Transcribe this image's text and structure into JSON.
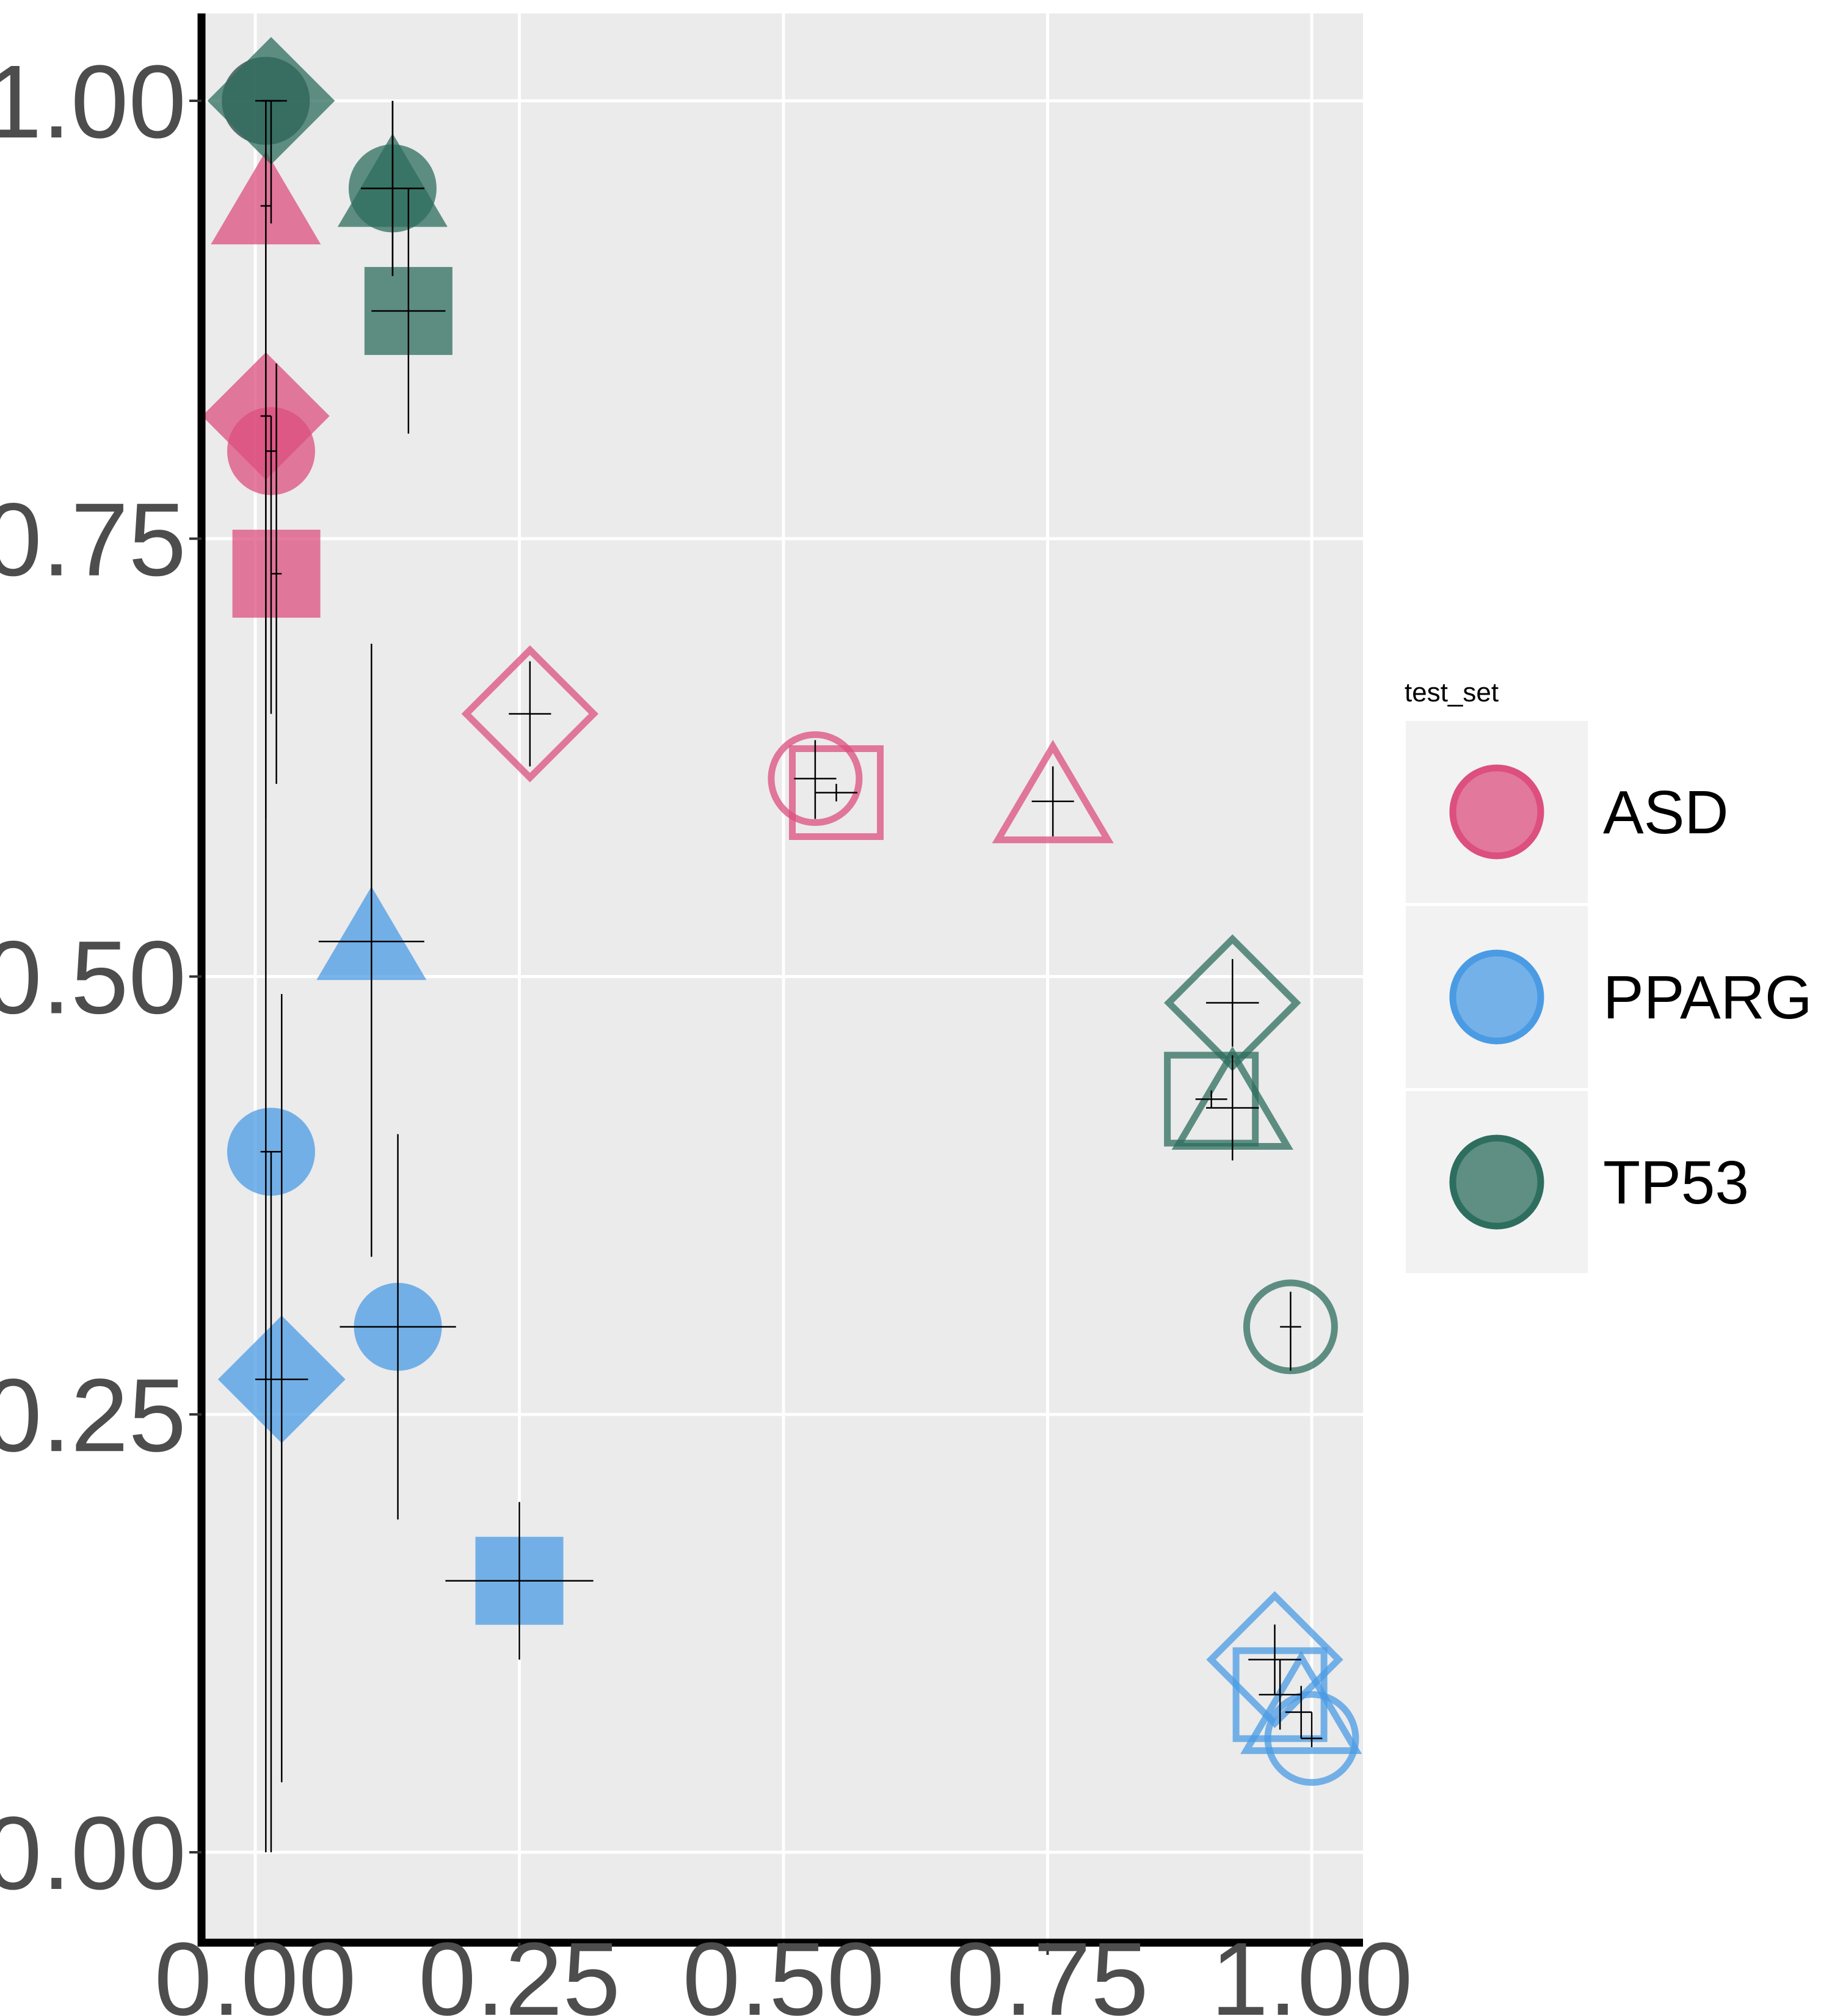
{
  "chart_data": {
    "type": "scatter",
    "title": "",
    "xlabel": "",
    "ylabel": "",
    "xlim": [
      -0.05,
      1.05
    ],
    "ylim": [
      -0.05,
      1.05
    ],
    "x_ticks": [
      0,
      0.25,
      0.5,
      0.75,
      1
    ],
    "y_ticks": [
      0,
      0.25,
      0.5,
      0.75,
      1
    ],
    "x_tick_labels": [
      "0.00",
      "0.25",
      "0.50",
      "0.75",
      "1.00"
    ],
    "y_tick_labels": [
      "0.00",
      "0.25",
      "0.50",
      "0.75",
      "1.00"
    ],
    "grid": true,
    "panel_background": "#EBEBEB",
    "legend": {
      "title": "test_set",
      "placement": "right",
      "entries": [
        "ASD",
        "PPARG",
        "TP53"
      ]
    },
    "colors": {
      "ASD": "#DC4F7E",
      "PPARG": "#4A9BE4",
      "TP53": "#2E6E5E"
    },
    "series": [
      {
        "name": "ASD",
        "points": [
          {
            "shape": "circle",
            "filled": true,
            "x": 0.01,
            "y": 1.0,
            "xlo": 0.005,
            "xhi": 0.015,
            "ylo": 0.59,
            "yhi": 1.0
          },
          {
            "shape": "triangle",
            "filled": true,
            "x": 0.01,
            "y": 0.94,
            "xlo": 0.005,
            "xhi": 0.015,
            "ylo": 0.59,
            "yhi": 0.94
          },
          {
            "shape": "diamond",
            "filled": true,
            "x": 0.01,
            "y": 0.82,
            "xlo": 0.005,
            "xhi": 0.015,
            "ylo": 0.0,
            "yhi": 0.85
          },
          {
            "shape": "circle",
            "filled": true,
            "x": 0.015,
            "y": 0.8,
            "xlo": 0.01,
            "xhi": 0.02,
            "ylo": 0.65,
            "yhi": 0.82
          },
          {
            "shape": "square",
            "filled": true,
            "x": 0.02,
            "y": 0.73,
            "xlo": 0.015,
            "xhi": 0.025,
            "ylo": 0.61,
            "yhi": 0.85
          },
          {
            "shape": "diamond",
            "filled": false,
            "x": 0.26,
            "y": 0.65,
            "xlo": 0.24,
            "xhi": 0.28,
            "ylo": 0.62,
            "yhi": 0.68
          },
          {
            "shape": "circle",
            "filled": false,
            "x": 0.53,
            "y": 0.613,
            "xlo": 0.51,
            "xhi": 0.55,
            "ylo": 0.59,
            "yhi": 0.635
          },
          {
            "shape": "square",
            "filled": false,
            "x": 0.55,
            "y": 0.605,
            "xlo": 0.53,
            "xhi": 0.57,
            "ylo": 0.6,
            "yhi": 0.61
          },
          {
            "shape": "triangle",
            "filled": false,
            "x": 0.755,
            "y": 0.6,
            "xlo": 0.735,
            "xhi": 0.775,
            "ylo": 0.58,
            "yhi": 0.62
          }
        ]
      },
      {
        "name": "PPARG",
        "points": [
          {
            "shape": "triangle",
            "filled": true,
            "x": 0.11,
            "y": 0.52,
            "xlo": 0.06,
            "xhi": 0.16,
            "ylo": 0.34,
            "yhi": 0.69
          },
          {
            "shape": "circle",
            "filled": true,
            "x": 0.015,
            "y": 0.4,
            "xlo": 0.005,
            "xhi": 0.025,
            "ylo": 0.0,
            "yhi": 0.4
          },
          {
            "shape": "circle",
            "filled": true,
            "x": 0.135,
            "y": 0.3,
            "xlo": 0.08,
            "xhi": 0.19,
            "ylo": 0.19,
            "yhi": 0.41
          },
          {
            "shape": "diamond",
            "filled": true,
            "x": 0.025,
            "y": 0.27,
            "xlo": 0.0,
            "xhi": 0.05,
            "ylo": 0.04,
            "yhi": 0.49
          },
          {
            "shape": "square",
            "filled": true,
            "x": 0.25,
            "y": 0.155,
            "xlo": 0.18,
            "xhi": 0.32,
            "ylo": 0.11,
            "yhi": 0.2
          },
          {
            "shape": "diamond",
            "filled": false,
            "x": 0.965,
            "y": 0.11,
            "xlo": 0.94,
            "xhi": 0.99,
            "ylo": 0.09,
            "yhi": 0.13
          },
          {
            "shape": "square",
            "filled": false,
            "x": 0.97,
            "y": 0.09,
            "xlo": 0.95,
            "xhi": 0.99,
            "ylo": 0.07,
            "yhi": 0.11
          },
          {
            "shape": "triangle",
            "filled": false,
            "x": 0.99,
            "y": 0.08,
            "xlo": 0.975,
            "xhi": 1.0,
            "ylo": 0.065,
            "yhi": 0.095
          },
          {
            "shape": "circle",
            "filled": false,
            "x": 1.0,
            "y": 0.065,
            "xlo": 0.99,
            "xhi": 1.01,
            "ylo": 0.06,
            "yhi": 0.08
          }
        ]
      },
      {
        "name": "TP53",
        "points": [
          {
            "shape": "diamond",
            "filled": true,
            "x": 0.015,
            "y": 1.0,
            "xlo": 0.005,
            "xhi": 0.025,
            "ylo": 0.93,
            "yhi": 1.0
          },
          {
            "shape": "circle",
            "filled": true,
            "x": 0.01,
            "y": 1.0,
            "xlo": 0.0,
            "xhi": 0.03,
            "ylo": 0.93,
            "yhi": 1.0
          },
          {
            "shape": "triangle",
            "filled": true,
            "x": 0.13,
            "y": 0.95,
            "xlo": 0.1,
            "xhi": 0.16,
            "ylo": 0.9,
            "yhi": 1.0
          },
          {
            "shape": "circle",
            "filled": true,
            "x": 0.13,
            "y": 0.95,
            "xlo": 0.1,
            "xhi": 0.16,
            "ylo": 0.9,
            "yhi": 1.0
          },
          {
            "shape": "square",
            "filled": true,
            "x": 0.145,
            "y": 0.88,
            "xlo": 0.11,
            "xhi": 0.18,
            "ylo": 0.81,
            "yhi": 0.95
          },
          {
            "shape": "diamond",
            "filled": false,
            "x": 0.925,
            "y": 0.485,
            "xlo": 0.9,
            "xhi": 0.95,
            "ylo": 0.46,
            "yhi": 0.51
          },
          {
            "shape": "square",
            "filled": false,
            "x": 0.905,
            "y": 0.43,
            "xlo": 0.89,
            "xhi": 0.92,
            "ylo": 0.425,
            "yhi": 0.435
          },
          {
            "shape": "triangle",
            "filled": false,
            "x": 0.925,
            "y": 0.425,
            "xlo": 0.9,
            "xhi": 0.95,
            "ylo": 0.395,
            "yhi": 0.455
          },
          {
            "shape": "circle",
            "filled": false,
            "x": 0.98,
            "y": 0.3,
            "xlo": 0.97,
            "xhi": 0.99,
            "ylo": 0.275,
            "yhi": 0.32
          }
        ]
      }
    ]
  }
}
